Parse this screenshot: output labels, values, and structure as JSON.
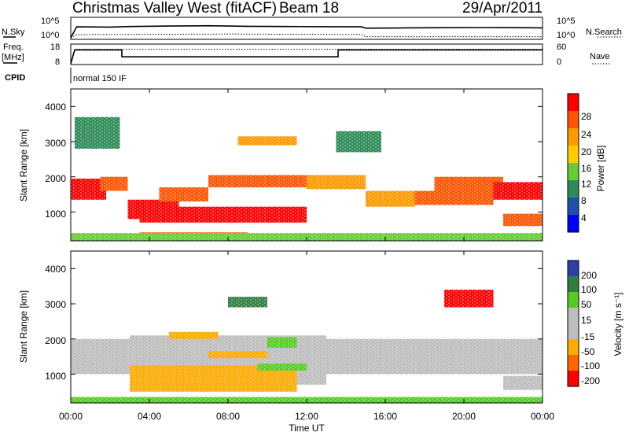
{
  "header": {
    "station": "Christmas Valley West (fitACF)",
    "beam": "Beam 18",
    "date": "29/Apr/2011"
  },
  "sky_panel": {
    "left_label": "N.Sky",
    "left_ticks": [
      "10^5",
      "10^0"
    ],
    "right_label": "N.Search",
    "right_ticks": [
      "10^5",
      "10^0"
    ]
  },
  "freq_panel": {
    "left_label_1": "Freq.",
    "left_label_2": "[MHz]",
    "left_ticks": [
      "18",
      "8"
    ],
    "right_label": "Nave",
    "right_ticks": [
      "60",
      "0"
    ]
  },
  "cpid_panel": {
    "label": "CPID",
    "mode": "normal 150 IF"
  },
  "power_panel": {
    "ylabel": "Slant Range [km]",
    "yticks": [
      "4000",
      "3000",
      "2000",
      "1000"
    ],
    "colorbar_label": "Power [dB]",
    "colorbar_ticks": [
      "28",
      "24",
      "20",
      "16",
      "12",
      "8",
      "4"
    ]
  },
  "velocity_panel": {
    "ylabel": "Slant Range [km]",
    "yticks": [
      "4000",
      "3000",
      "2000",
      "1000"
    ],
    "colorbar_label": "Velocity [m s⁻¹]",
    "colorbar_ticks": [
      "200",
      "100",
      "50",
      "15",
      "-15",
      "-50",
      "-100",
      "-200"
    ]
  },
  "x_axis": {
    "label": "Time UT",
    "ticks": [
      "00:00",
      "04:00",
      "08:00",
      "12:00",
      "16:00",
      "20:00",
      "00:00"
    ]
  },
  "colors": {
    "power_scale": [
      "#0000ff",
      "#1f4fa8",
      "#2e8b57",
      "#66cc33",
      "#ffcc00",
      "#ff9900",
      "#ff5500",
      "#ff0000"
    ],
    "velocity_scale": [
      "#2a3fa8",
      "#2f7f3f",
      "#55cc22",
      "#bdbdbd",
      "#bdbdbd",
      "#ffaa00",
      "#ff6600",
      "#ff0000"
    ],
    "background": "#ffffff"
  },
  "chart_data": [
    {
      "type": "line",
      "title": "N.Sky / N.Search",
      "x_range": [
        0,
        24
      ],
      "series": [
        {
          "name": "N.Sky",
          "x": [
            0,
            0.3,
            2,
            3,
            5,
            7,
            9,
            11,
            13,
            14.8,
            15,
            17,
            19,
            21,
            23,
            24
          ],
          "y": [
            1,
            1500,
            1200,
            1800,
            2500,
            3000,
            2000,
            1800,
            1600,
            1500,
            600,
            700,
            800,
            900,
            800,
            700
          ]
        },
        {
          "name": "N.Search",
          "x": [
            0,
            0.3,
            4,
            8,
            12,
            14.8,
            15,
            20,
            24
          ],
          "y": [
            1,
            8,
            10,
            12,
            10,
            9,
            2,
            2,
            2
          ]
        }
      ],
      "ylim": [
        1,
        100000
      ],
      "yscale": "log"
    },
    {
      "type": "line",
      "title": "Freq / Nave",
      "x_range": [
        0,
        24
      ],
      "series": [
        {
          "name": "Freq",
          "x": [
            0,
            0.2,
            2.6,
            2.6,
            13.6,
            13.6,
            24
          ],
          "y": [
            8,
            16,
            16,
            12,
            12,
            16,
            16
          ]
        },
        {
          "name": "Nave",
          "x": [
            0,
            0.2,
            24
          ],
          "y": [
            0,
            50,
            50
          ]
        }
      ],
      "ylim": [
        8,
        18
      ],
      "y2lim": [
        0,
        60
      ]
    },
    {
      "type": "heatmap",
      "title": "Power",
      "x_range": [
        0,
        24
      ],
      "ylim": [
        180,
        4500
      ],
      "value_range": [
        0,
        30
      ],
      "units": "dB",
      "regions": [
        {
          "t0": 0.0,
          "t1": 1.8,
          "r0": 1350,
          "r1": 1950,
          "power": 28
        },
        {
          "t0": 1.5,
          "t1": 2.9,
          "r0": 1600,
          "r1": 2000,
          "power": 26
        },
        {
          "t0": 2.9,
          "t1": 5.5,
          "r0": 800,
          "r1": 1350,
          "power": 28
        },
        {
          "t0": 4.5,
          "t1": 7.0,
          "r0": 1300,
          "r1": 1700,
          "power": 26
        },
        {
          "t0": 3.5,
          "t1": 12.0,
          "r0": 700,
          "r1": 1150,
          "power": 28
        },
        {
          "t0": 7.0,
          "t1": 12.5,
          "r0": 1700,
          "r1": 2050,
          "power": 24
        },
        {
          "t0": 8.5,
          "t1": 11.5,
          "r0": 2900,
          "r1": 3150,
          "power": 20
        },
        {
          "t0": 3.5,
          "t1": 9.0,
          "r0": 180,
          "r1": 420,
          "power": 27
        },
        {
          "t0": 12.0,
          "t1": 15.0,
          "r0": 1650,
          "r1": 2050,
          "power": 22
        },
        {
          "t0": 15.0,
          "t1": 17.5,
          "r0": 1150,
          "r1": 1600,
          "power": 20
        },
        {
          "t0": 17.5,
          "t1": 21.5,
          "r0": 1200,
          "r1": 1600,
          "power": 24
        },
        {
          "t0": 18.5,
          "t1": 22.0,
          "r0": 1500,
          "r1": 2000,
          "power": 26
        },
        {
          "t0": 21.5,
          "t1": 24.0,
          "r0": 1350,
          "r1": 1850,
          "power": 28
        },
        {
          "t0": 22.0,
          "t1": 24.0,
          "r0": 600,
          "r1": 950,
          "power": 26
        },
        {
          "t0": 0.0,
          "t1": 24.0,
          "r0": 180,
          "r1": 400,
          "power": 12
        },
        {
          "t0": 13.5,
          "t1": 15.8,
          "r0": 2700,
          "r1": 3300,
          "power": 8
        },
        {
          "t0": 0.2,
          "t1": 2.5,
          "r0": 2800,
          "r1": 3700,
          "power": 10
        }
      ]
    },
    {
      "type": "heatmap",
      "title": "Velocity",
      "x_range": [
        0,
        24
      ],
      "ylim": [
        180,
        4500
      ],
      "value_range": [
        -200,
        200
      ],
      "units": "m s^-1",
      "regions": [
        {
          "t0": 0.0,
          "t1": 24.0,
          "r0": 1000,
          "r1": 2000,
          "velocity": 0
        },
        {
          "t0": 3.0,
          "t1": 13.0,
          "r0": 700,
          "r1": 2100,
          "velocity": 0
        },
        {
          "t0": 3.0,
          "t1": 11.5,
          "r0": 500,
          "r1": 1250,
          "velocity": -40
        },
        {
          "t0": 7.0,
          "t1": 10.0,
          "r0": 1450,
          "r1": 1650,
          "velocity": -60
        },
        {
          "t0": 5.0,
          "t1": 7.5,
          "r0": 2000,
          "r1": 2200,
          "velocity": -40
        },
        {
          "t0": 9.5,
          "t1": 12.0,
          "r0": 1100,
          "r1": 1300,
          "velocity": 40
        },
        {
          "t0": 10.0,
          "t1": 11.5,
          "r0": 1750,
          "r1": 2050,
          "velocity": 45
        },
        {
          "t0": 8.0,
          "t1": 10.0,
          "r0": 2900,
          "r1": 3200,
          "velocity": 120
        },
        {
          "t0": 19.0,
          "t1": 21.5,
          "r0": 2900,
          "r1": 3400,
          "velocity": -200
        },
        {
          "t0": 0.0,
          "t1": 24.0,
          "r0": 180,
          "r1": 350,
          "velocity": 40
        },
        {
          "t0": 22.0,
          "t1": 24.0,
          "r0": 550,
          "r1": 950,
          "velocity": 0
        }
      ]
    }
  ]
}
